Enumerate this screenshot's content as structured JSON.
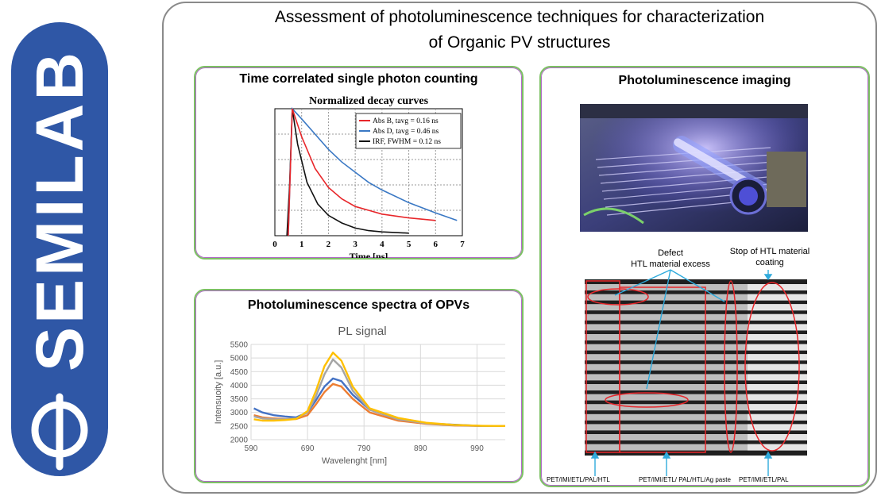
{
  "brand": {
    "name": "SEMILAB",
    "color": "#2f57a6",
    "logo_icon": "semilab-phi-logo-icon"
  },
  "title": {
    "line1": "Assessment of photoluminescence techniques for characterization",
    "line2": "of  Organic PV structures"
  },
  "panels": {
    "tcspc": {
      "title": "Time correlated single photon counting"
    },
    "spectra": {
      "title": "Photoluminescence spectra of OPVs"
    },
    "imaging": {
      "title": "Photoluminescence imaging"
    }
  },
  "chart_data": [
    {
      "type": "line",
      "title": "Normalized decay curves",
      "xlabel": "Time [ns]",
      "ylabel": "",
      "xlim": [
        0,
        7
      ],
      "ylim": [
        0,
        1
      ],
      "x_ticks": [
        "0",
        "1",
        "2",
        "3",
        "4",
        "5",
        "6",
        "7"
      ],
      "grid": true,
      "legend_position": "top-right",
      "series": [
        {
          "name": "Abs B, tavg = 0.16 ns",
          "color": "#e8262a",
          "x": [
            0.5,
            0.65,
            1.0,
            1.5,
            2.0,
            2.5,
            3.0,
            3.5,
            4.0,
            5.0,
            6.0
          ],
          "y": [
            0.0,
            1.0,
            0.78,
            0.53,
            0.38,
            0.29,
            0.23,
            0.2,
            0.17,
            0.14,
            0.12
          ]
        },
        {
          "name": "Abs D, tavg = 0.46 ns",
          "color": "#3a78c4",
          "x": [
            0.5,
            0.65,
            1.0,
            1.5,
            2.0,
            2.5,
            3.0,
            3.5,
            4.0,
            5.0,
            6.0,
            6.8
          ],
          "y": [
            0.0,
            1.0,
            0.92,
            0.8,
            0.68,
            0.58,
            0.5,
            0.42,
            0.36,
            0.26,
            0.18,
            0.12
          ]
        },
        {
          "name": "IRF, FWHM = 0.12 ns",
          "color": "#111111",
          "x": [
            0.45,
            0.55,
            0.65,
            0.85,
            1.2,
            1.6,
            2.0,
            2.5,
            3.0,
            3.5,
            4.0,
            5.0
          ],
          "y": [
            0.0,
            0.4,
            1.0,
            0.72,
            0.42,
            0.25,
            0.16,
            0.1,
            0.06,
            0.04,
            0.03,
            0.02
          ]
        }
      ]
    },
    {
      "type": "line",
      "title": "PL signal",
      "xlabel": "Wavelenght [nm]",
      "ylabel": "Intensuoity [a.u.]",
      "xlim": [
        590,
        1040
      ],
      "ylim": [
        2000,
        5500
      ],
      "x_ticks": [
        590,
        690,
        790,
        890,
        990
      ],
      "y_ticks": [
        2000,
        2500,
        3000,
        3500,
        4000,
        4500,
        5000,
        5500
      ],
      "grid": true,
      "legend_position": "none",
      "series": [
        {
          "color": "#4472c4",
          "x": [
            595,
            610,
            630,
            650,
            670,
            690,
            705,
            720,
            735,
            750,
            770,
            800,
            850,
            900,
            950,
            1000,
            1040
          ],
          "y": [
            3150,
            3000,
            2900,
            2850,
            2820,
            3000,
            3450,
            3950,
            4250,
            4150,
            3650,
            3100,
            2750,
            2600,
            2550,
            2500,
            2500
          ]
        },
        {
          "color": "#ed7d31",
          "x": [
            595,
            610,
            630,
            650,
            670,
            690,
            705,
            720,
            735,
            750,
            770,
            800,
            850,
            900,
            950,
            1000,
            1040
          ],
          "y": [
            2900,
            2820,
            2780,
            2760,
            2760,
            2900,
            3300,
            3750,
            4050,
            3950,
            3500,
            3000,
            2700,
            2580,
            2520,
            2500,
            2500
          ]
        },
        {
          "color": "#a5a5a5",
          "x": [
            595,
            610,
            630,
            650,
            670,
            690,
            705,
            720,
            735,
            750,
            770,
            800,
            850,
            900,
            950,
            1000,
            1040
          ],
          "y": [
            2850,
            2780,
            2750,
            2750,
            2780,
            3000,
            3600,
            4400,
            4950,
            4650,
            3800,
            3100,
            2750,
            2600,
            2530,
            2500,
            2500
          ]
        },
        {
          "color": "#ffc000",
          "x": [
            595,
            610,
            630,
            650,
            670,
            690,
            705,
            720,
            735,
            750,
            770,
            800,
            850,
            900,
            950,
            1000,
            1040
          ],
          "y": [
            2750,
            2700,
            2700,
            2720,
            2760,
            3050,
            3800,
            4700,
            5200,
            4900,
            3950,
            3150,
            2800,
            2620,
            2540,
            2510,
            2500
          ]
        }
      ]
    }
  ],
  "imaging": {
    "photo_description_icon": "pl-imaging-machine-photo-icon",
    "annotations": {
      "defect_line1": "Defect",
      "defect_line2": "HTL material excess",
      "stop_line1": "Stop of HTL material",
      "stop_line2": "coating"
    },
    "bottom_labels": [
      "PET/IMI/ETL/PAL/HTL",
      "PET/IMI/ETL/ PAL/HTL/Ag paste",
      "PET/IMI/ETL/PAL"
    ],
    "highlight_color": "#e8262a",
    "arrow_color": "#2eaadc"
  }
}
